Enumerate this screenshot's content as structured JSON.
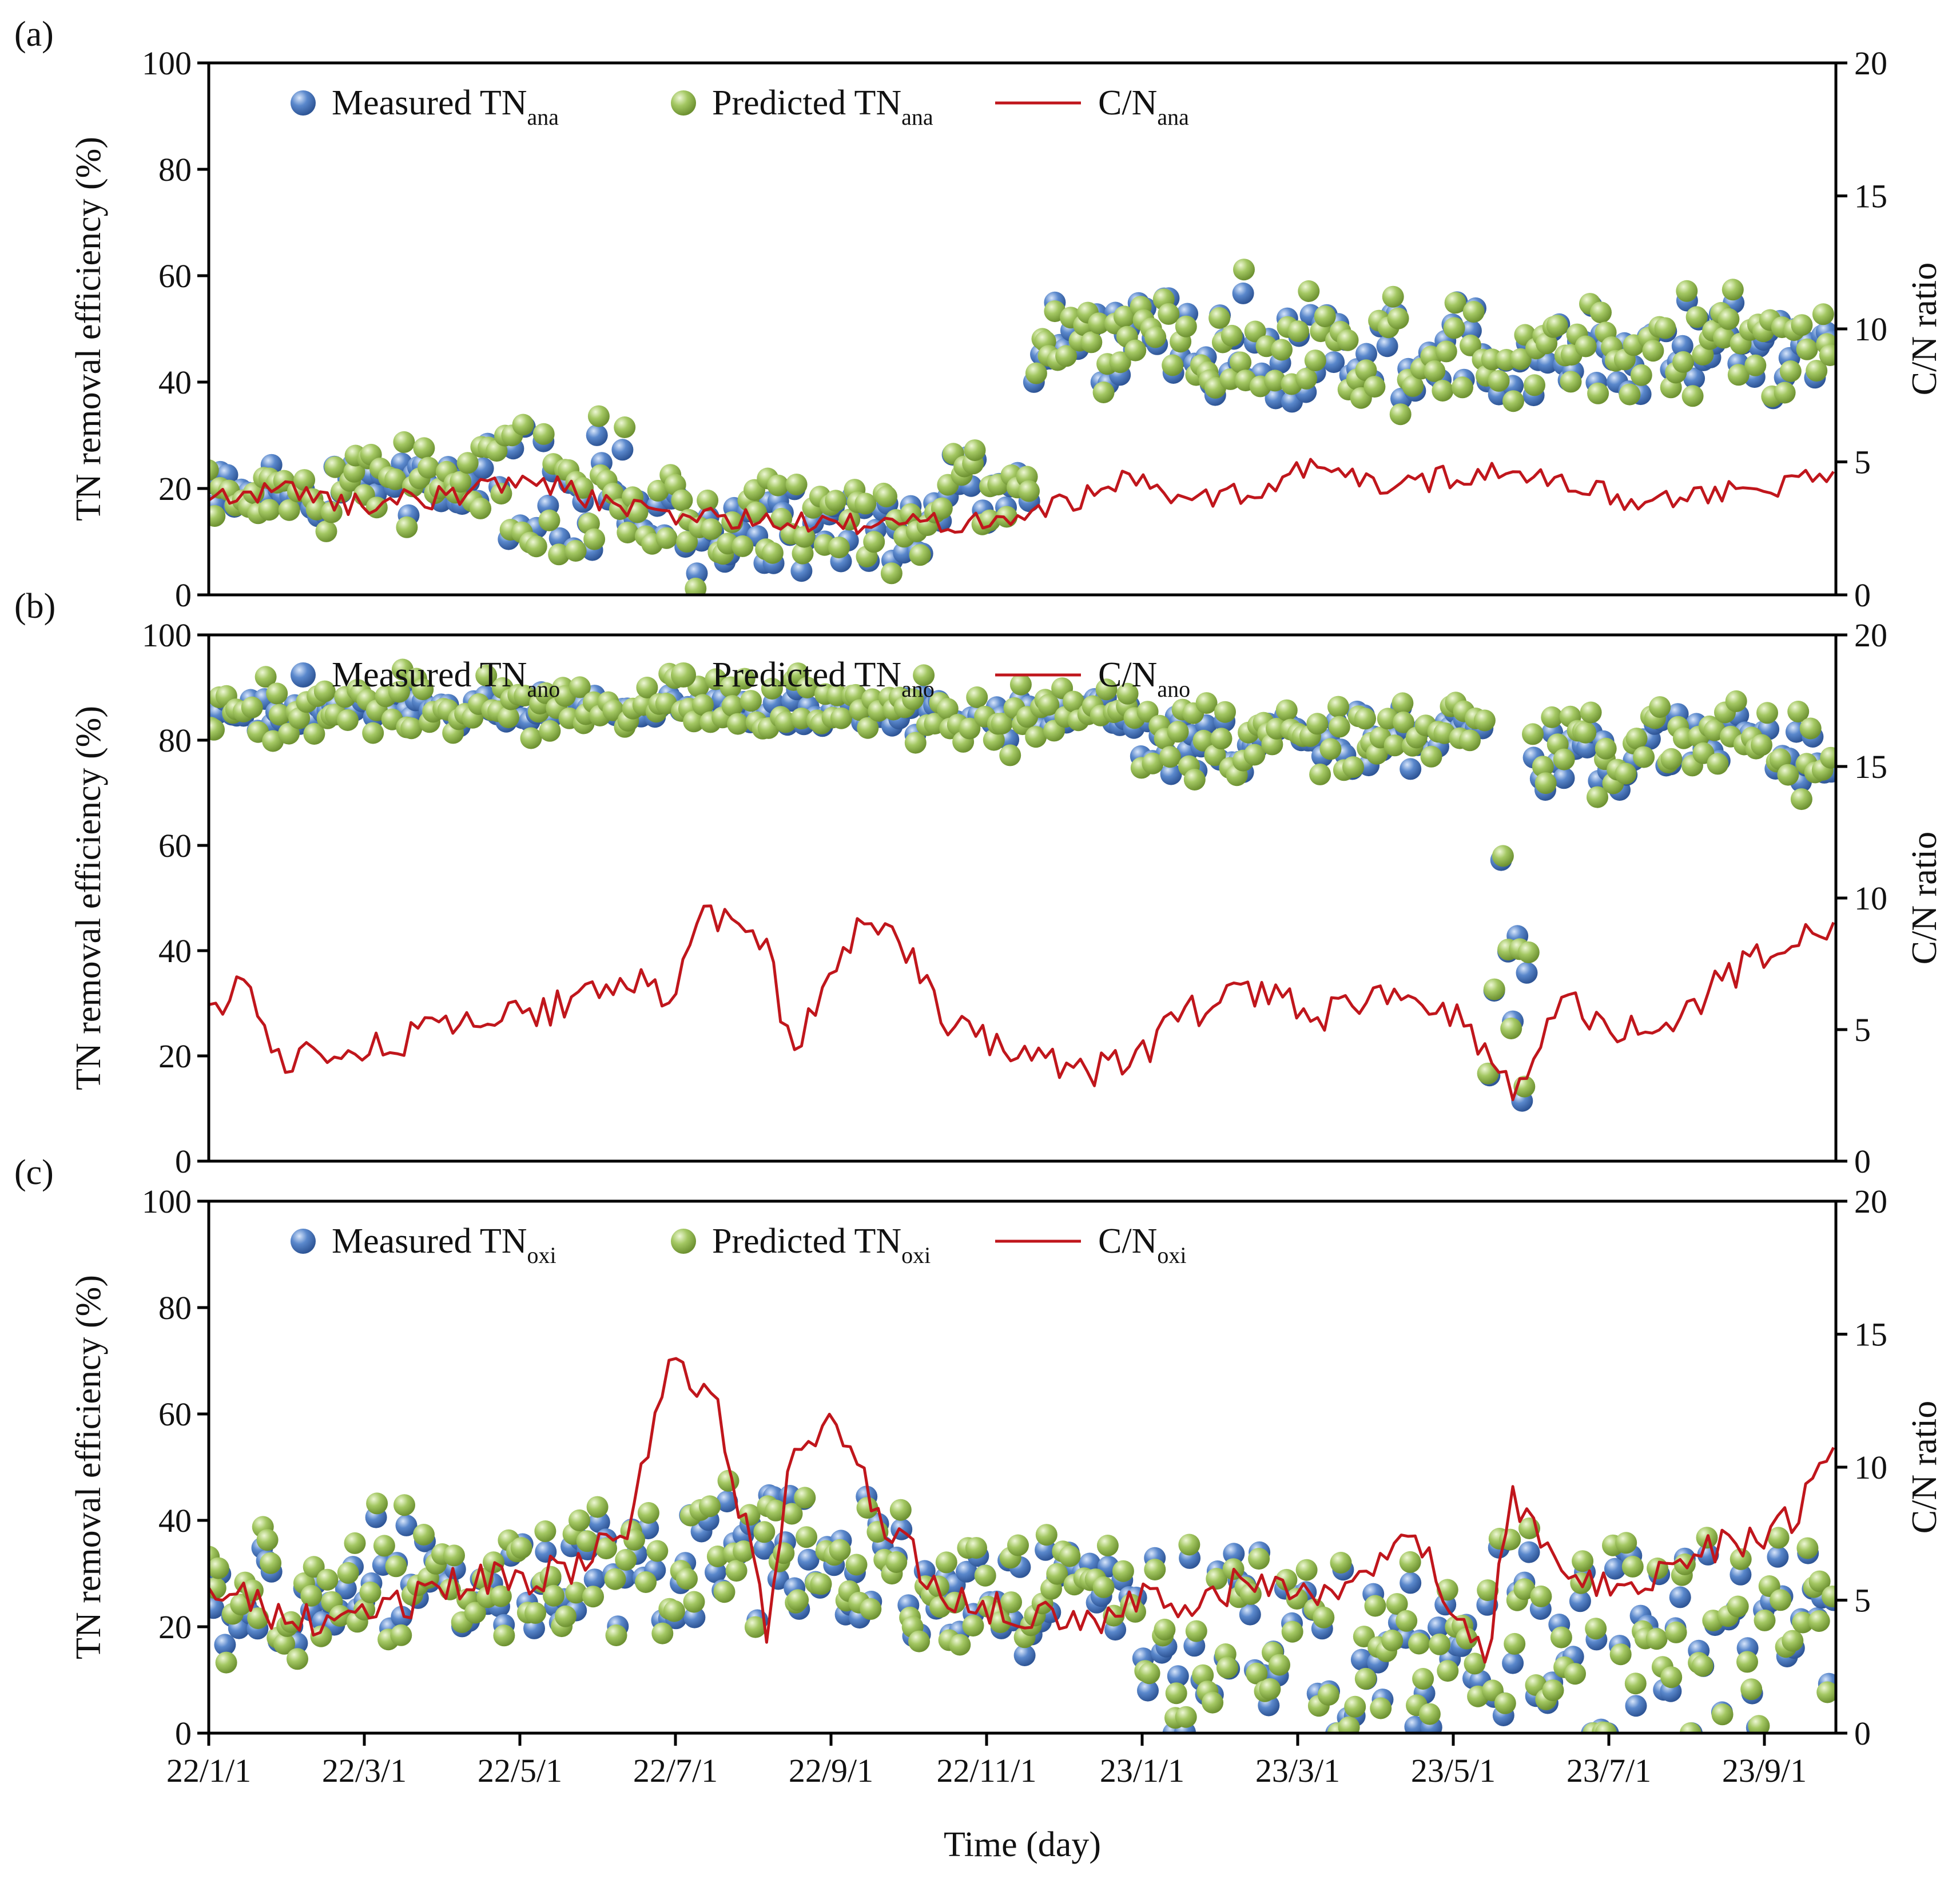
{
  "chart_data": [
    {
      "panel_label": "(a)",
      "type": "scatter",
      "ylabel": "TN removal efficiency (%)",
      "y2label": "C/N ratio",
      "ylim": [
        0,
        100
      ],
      "y2lim": [
        0,
        20
      ],
      "yticks": [
        "0",
        "20",
        "40",
        "60",
        "80",
        "100"
      ],
      "y2ticks": [
        "0",
        "5",
        "10",
        "15",
        "20"
      ],
      "legend": [
        {
          "main": "Measured TN",
          "sub": "ana"
        },
        {
          "main": "Predicted TN",
          "sub": "ana"
        },
        {
          "main": "C/N",
          "sub": "ana"
        }
      ],
      "cn_breakpoints": [
        [
          0,
          3.6
        ],
        [
          35,
          4.0
        ],
        [
          60,
          3.4
        ],
        [
          100,
          3.7
        ],
        [
          140,
          4.4
        ],
        [
          180,
          3.2
        ],
        [
          220,
          2.9
        ],
        [
          260,
          2.6
        ],
        [
          300,
          2.7
        ],
        [
          340,
          2.9
        ],
        [
          360,
          3.3
        ],
        [
          380,
          3.8
        ],
        [
          400,
          4.5
        ],
        [
          420,
          3.4
        ],
        [
          450,
          4.0
        ],
        [
          480,
          4.9
        ],
        [
          510,
          3.9
        ],
        [
          540,
          4.6
        ],
        [
          580,
          4.3
        ],
        [
          610,
          3.6
        ],
        [
          660,
          3.9
        ],
        [
          700,
          4.4
        ]
      ],
      "measured_blocks": [
        [
          0,
          40,
          15,
          25
        ],
        [
          40,
          120,
          15,
          25
        ],
        [
          120,
          180,
          10,
          30
        ],
        [
          180,
          320,
          5,
          20
        ],
        [
          320,
          355,
          15,
          25
        ],
        [
          355,
          420,
          40,
          55
        ],
        [
          420,
          700,
          38,
          55
        ]
      ],
      "predicted_offset": 0.5
    },
    {
      "panel_label": "(b)",
      "type": "scatter",
      "ylabel": "TN removal efficiency (%)",
      "y2label": "C/N ratio",
      "ylim": [
        0,
        100
      ],
      "y2lim": [
        0,
        20
      ],
      "yticks": [
        "0",
        "20",
        "40",
        "60",
        "80",
        "100"
      ],
      "y2ticks": [
        "0",
        "5",
        "10",
        "15",
        "20"
      ],
      "legend": [
        {
          "main": "Measured TN",
          "sub": "ano"
        },
        {
          "main": "Predicted TN",
          "sub": "ano"
        },
        {
          "main": "C/N",
          "sub": "ano"
        }
      ],
      "cn_breakpoints": [
        [
          0,
          6.0
        ],
        [
          15,
          6.5
        ],
        [
          30,
          4.0
        ],
        [
          60,
          4.2
        ],
        [
          100,
          5.0
        ],
        [
          140,
          5.5
        ],
        [
          170,
          7.0
        ],
        [
          200,
          6.5
        ],
        [
          210,
          9.5
        ],
        [
          240,
          8.5
        ],
        [
          250,
          4.0
        ],
        [
          280,
          9.0
        ],
        [
          300,
          8.0
        ],
        [
          320,
          5.0
        ],
        [
          360,
          4.0
        ],
        [
          380,
          3.5
        ],
        [
          400,
          4.0
        ],
        [
          420,
          5.5
        ],
        [
          450,
          6.5
        ],
        [
          480,
          5.5
        ],
        [
          500,
          6.0
        ],
        [
          520,
          6.5
        ],
        [
          540,
          5.5
        ],
        [
          560,
          2.5
        ],
        [
          580,
          6.0
        ],
        [
          600,
          5.5
        ],
        [
          620,
          4.5
        ],
        [
          640,
          6.0
        ],
        [
          660,
          7.5
        ],
        [
          690,
          8.5
        ],
        [
          700,
          9.5
        ]
      ],
      "measured_blocks": [
        [
          0,
          60,
          82,
          88
        ],
        [
          60,
          250,
          84,
          88
        ],
        [
          250,
          400,
          82,
          88
        ],
        [
          400,
          550,
          75,
          85
        ],
        [
          550,
          570,
          10,
          60
        ],
        [
          570,
          700,
          72,
          84
        ]
      ],
      "predicted_offset": 0.5
    },
    {
      "panel_label": "(c)",
      "type": "scatter",
      "xlabel": "Time (day)",
      "ylabel": "TN removal efficiency (%)",
      "y2label": "C/N ratio",
      "ylim": [
        0,
        100
      ],
      "y2lim": [
        0,
        20
      ],
      "yticks": [
        "0",
        "20",
        "40",
        "60",
        "80",
        "100"
      ],
      "y2ticks": [
        "0",
        "5",
        "10",
        "15",
        "20"
      ],
      "xticks": [
        "22/1/1",
        "22/3/1",
        "22/5/1",
        "22/7/1",
        "22/9/1",
        "22/11/1",
        "23/1/1",
        "23/3/1",
        "23/5/1",
        "23/7/1",
        "23/9/1"
      ],
      "legend": [
        {
          "main": "Measured TN",
          "sub": "oxi"
        },
        {
          "main": "Predicted TN",
          "sub": "oxi"
        },
        {
          "main": "C/N",
          "sub": "oxi"
        }
      ],
      "cn_breakpoints": [
        [
          0,
          5.5
        ],
        [
          30,
          4.5
        ],
        [
          60,
          4.0
        ],
        [
          100,
          5.5
        ],
        [
          150,
          6.0
        ],
        [
          180,
          7.5
        ],
        [
          200,
          14.5
        ],
        [
          220,
          12.0
        ],
        [
          240,
          4.0
        ],
        [
          250,
          10.5
        ],
        [
          270,
          12.0
        ],
        [
          290,
          8.0
        ],
        [
          320,
          5.0
        ],
        [
          360,
          4.5
        ],
        [
          380,
          4.0
        ],
        [
          400,
          5.0
        ],
        [
          420,
          4.5
        ],
        [
          450,
          6.0
        ],
        [
          480,
          5.0
        ],
        [
          500,
          6.5
        ],
        [
          520,
          7.0
        ],
        [
          550,
          3.0
        ],
        [
          560,
          9.0
        ],
        [
          580,
          6.0
        ],
        [
          600,
          5.5
        ],
        [
          620,
          6.0
        ],
        [
          650,
          7.0
        ],
        [
          680,
          8.0
        ],
        [
          700,
          10.5
        ]
      ],
      "measured_blocks": [
        [
          0,
          60,
          15,
          35
        ],
        [
          60,
          200,
          20,
          40
        ],
        [
          200,
          300,
          20,
          45
        ],
        [
          300,
          400,
          15,
          35
        ],
        [
          400,
          700,
          0,
          35
        ]
      ],
      "predicted_offset": 0.5
    }
  ],
  "colors": {
    "measured": "#3f6db2",
    "predicted": "#93b84f",
    "cn_line": "#c0161c"
  }
}
